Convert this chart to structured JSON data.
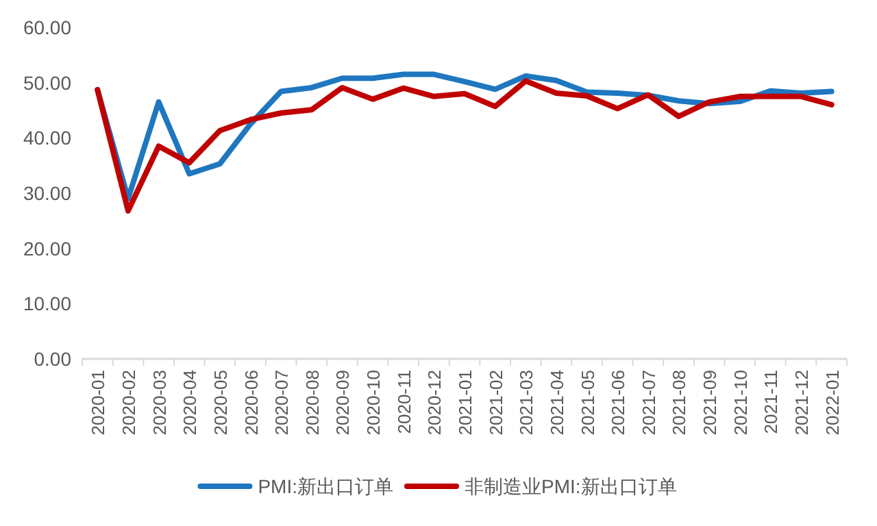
{
  "chart_data": {
    "type": "line",
    "categories": [
      "2020-01",
      "2020-02",
      "2020-03",
      "2020-04",
      "2020-05",
      "2020-06",
      "2020-07",
      "2020-08",
      "2020-09",
      "2020-10",
      "2020-11",
      "2020-12",
      "2021-01",
      "2021-02",
      "2021-03",
      "2021-04",
      "2021-05",
      "2021-06",
      "2021-07",
      "2021-08",
      "2021-09",
      "2021-10",
      "2021-11",
      "2021-12",
      "2022-01"
    ],
    "series": [
      {
        "name": "PMI:新出口订单",
        "color": "#1f77c0",
        "values": [
          48.7,
          29.0,
          46.5,
          33.5,
          35.3,
          42.5,
          48.4,
          49.1,
          50.8,
          50.8,
          51.5,
          51.5,
          50.2,
          48.8,
          51.2,
          50.4,
          48.3,
          48.1,
          47.7,
          46.7,
          46.2,
          46.6,
          48.5,
          48.1,
          48.4
        ]
      },
      {
        "name": "非制造业PMI:新出口订单",
        "color": "#c00000",
        "values": [
          48.7,
          26.8,
          38.5,
          35.5,
          41.3,
          43.3,
          44.5,
          45.1,
          49.1,
          47.0,
          49.0,
          47.5,
          48.0,
          45.7,
          50.3,
          48.1,
          47.6,
          45.3,
          47.8,
          43.9,
          46.5,
          47.5,
          47.5,
          47.5,
          46.0
        ]
      }
    ],
    "ylim": [
      0,
      60
    ],
    "yticks": [
      {
        "value": 0,
        "label": "0.00"
      },
      {
        "value": 10,
        "label": "10.00"
      },
      {
        "value": 20,
        "label": "20.00"
      },
      {
        "value": 30,
        "label": "30.00"
      },
      {
        "value": 40,
        "label": "40.00"
      },
      {
        "value": 50,
        "label": "50.00"
      },
      {
        "value": 60,
        "label": "60.00"
      }
    ],
    "grid": false,
    "legend": "bottom",
    "marker": "none",
    "line_style": "solid"
  }
}
